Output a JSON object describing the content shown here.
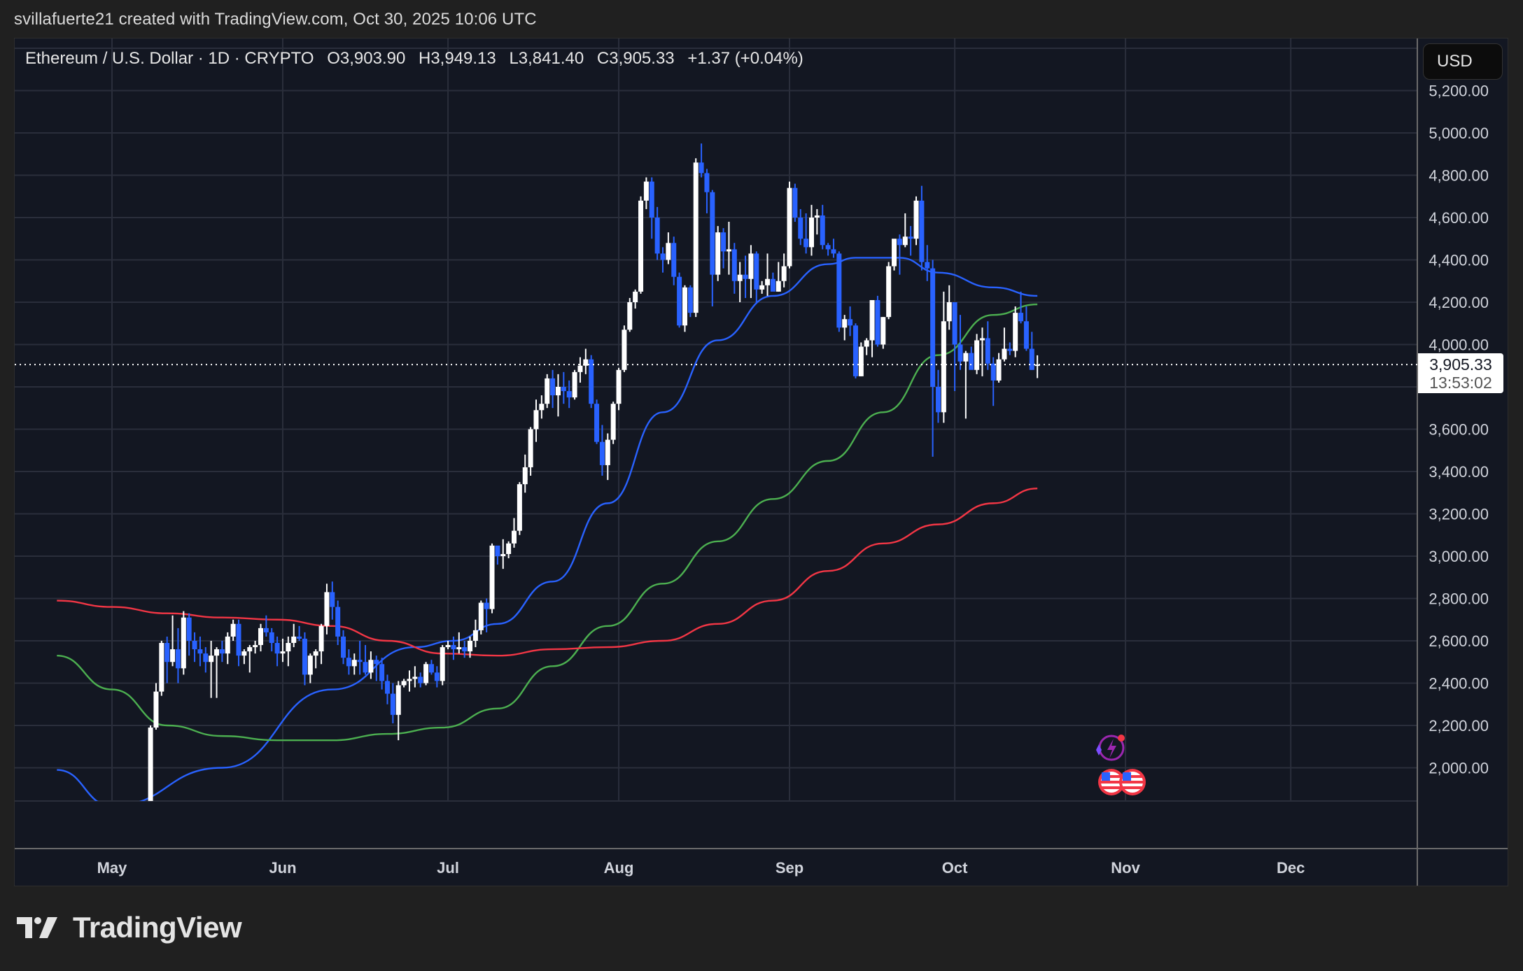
{
  "caption": "svillafuerte21 created with TradingView.com, Oct 30, 2025 10:06 UTC",
  "legend": {
    "symbol": "Ethereum / U.S. Dollar · 1D · CRYPTO",
    "open": "O3,903.90",
    "high": "H3,949.13",
    "low": "L3,841.40",
    "close": "C3,905.33",
    "change": "+1.37 (+0.04%)"
  },
  "currency_button": "USD",
  "last_price": {
    "value": "3,905.33",
    "countdown": "13:53:02"
  },
  "brand": "TradingView",
  "colors": {
    "background": "#131722",
    "outer": "#202020",
    "grid": "#2a2e3b",
    "up": "#ffffff",
    "down": "#2962ff",
    "ma_fast": "#2962ff",
    "ma_mid": "#4caf50",
    "ma_slow": "#f23645"
  },
  "chart_data": {
    "type": "candlestick",
    "title": "Ethereum / U.S. Dollar · 1D · CRYPTO",
    "xlabel": "",
    "ylabel": "USD",
    "y_ticks": [
      "2,000.00",
      "2,200.00",
      "2,400.00",
      "2,600.00",
      "2,800.00",
      "3,000.00",
      "3,200.00",
      "3,400.00",
      "3,600.00",
      "4,000.00",
      "4,200.00",
      "4,400.00",
      "4,600.00",
      "4,800.00",
      "5,000.00",
      "5,200.00"
    ],
    "x_ticks": [
      "May",
      "Jun",
      "Jul",
      "Aug",
      "Sep",
      "Oct",
      "Nov",
      "Dec"
    ],
    "ylim": [
      1850,
      5300
    ],
    "grid": true,
    "last_close": 3905.33,
    "ohlc_note": "day index d = days since May 1, 2025; values approximated from pixels",
    "candles": [
      [
        7,
        1800,
        2200,
        1790,
        2190
      ],
      [
        8,
        2190,
        2400,
        2180,
        2360
      ],
      [
        9,
        2360,
        2600,
        2340,
        2590
      ],
      [
        10,
        2590,
        2620,
        2400,
        2500
      ],
      [
        11,
        2500,
        2720,
        2480,
        2560
      ],
      [
        12,
        2560,
        2660,
        2400,
        2470
      ],
      [
        13,
        2470,
        2740,
        2440,
        2710
      ],
      [
        14,
        2710,
        2730,
        2530,
        2600
      ],
      [
        15,
        2600,
        2640,
        2500,
        2560
      ],
      [
        16,
        2560,
        2620,
        2480,
        2540
      ],
      [
        17,
        2540,
        2570,
        2450,
        2500
      ],
      [
        18,
        2500,
        2600,
        2330,
        2530
      ],
      [
        19,
        2530,
        2570,
        2330,
        2560
      ],
      [
        20,
        2560,
        2600,
        2500,
        2540
      ],
      [
        21,
        2540,
        2640,
        2490,
        2620
      ],
      [
        22,
        2620,
        2700,
        2600,
        2680
      ],
      [
        23,
        2680,
        2700,
        2480,
        2530
      ],
      [
        24,
        2530,
        2560,
        2490,
        2550
      ],
      [
        25,
        2550,
        2580,
        2450,
        2570
      ],
      [
        26,
        2570,
        2600,
        2540,
        2580
      ],
      [
        27,
        2580,
        2680,
        2550,
        2660
      ],
      [
        28,
        2660,
        2720,
        2620,
        2640
      ],
      [
        29,
        2640,
        2660,
        2550,
        2590
      ],
      [
        30,
        2590,
        2620,
        2480,
        2540
      ],
      [
        31,
        2540,
        2610,
        2500,
        2550
      ],
      [
        32,
        2550,
        2620,
        2480,
        2590
      ],
      [
        33,
        2590,
        2680,
        2570,
        2620
      ],
      [
        34,
        2620,
        2670,
        2600,
        2610
      ],
      [
        35,
        2610,
        2640,
        2390,
        2440
      ],
      [
        36,
        2440,
        2540,
        2400,
        2530
      ],
      [
        37,
        2530,
        2560,
        2470,
        2550
      ],
      [
        38,
        2550,
        2680,
        2490,
        2670
      ],
      [
        39,
        2670,
        2870,
        2630,
        2830
      ],
      [
        40,
        2830,
        2880,
        2700,
        2760
      ],
      [
        41,
        2760,
        2790,
        2580,
        2620
      ],
      [
        42,
        2620,
        2650,
        2490,
        2520
      ],
      [
        43,
        2520,
        2560,
        2440,
        2480
      ],
      [
        44,
        2480,
        2540,
        2440,
        2510
      ],
      [
        45,
        2510,
        2600,
        2440,
        2500
      ],
      [
        46,
        2500,
        2580,
        2440,
        2450
      ],
      [
        47,
        2450,
        2550,
        2420,
        2510
      ],
      [
        48,
        2510,
        2530,
        2410,
        2490
      ],
      [
        49,
        2490,
        2520,
        2370,
        2410
      ],
      [
        50,
        2410,
        2440,
        2300,
        2350
      ],
      [
        51,
        2350,
        2400,
        2210,
        2250
      ],
      [
        52,
        2250,
        2410,
        2130,
        2390
      ],
      [
        53,
        2390,
        2420,
        2380,
        2410
      ],
      [
        54,
        2410,
        2460,
        2360,
        2420
      ],
      [
        55,
        2420,
        2480,
        2380,
        2430
      ],
      [
        56,
        2430,
        2450,
        2380,
        2400
      ],
      [
        57,
        2400,
        2500,
        2390,
        2490
      ],
      [
        58,
        2490,
        2510,
        2440,
        2450
      ],
      [
        59,
        2450,
        2480,
        2380,
        2410
      ],
      [
        60,
        2410,
        2580,
        2390,
        2570
      ],
      [
        61,
        2570,
        2600,
        2560,
        2580
      ],
      [
        62,
        2580,
        2620,
        2510,
        2560
      ],
      [
        63,
        2560,
        2640,
        2540,
        2570
      ],
      [
        64,
        2570,
        2600,
        2520,
        2550
      ],
      [
        65,
        2550,
        2620,
        2520,
        2600
      ],
      [
        66,
        2600,
        2700,
        2570,
        2650
      ],
      [
        67,
        2650,
        2790,
        2630,
        2780
      ],
      [
        68,
        2780,
        2800,
        2640,
        2750
      ],
      [
        69,
        2750,
        3060,
        2730,
        3050
      ],
      [
        70,
        3050,
        3020,
        2960,
        3000
      ],
      [
        71,
        3000,
        3080,
        2940,
        3010
      ],
      [
        72,
        3010,
        3070,
        2990,
        3060
      ],
      [
        73,
        3060,
        3180,
        3040,
        3120
      ],
      [
        74,
        3120,
        3350,
        3100,
        3340
      ],
      [
        75,
        3340,
        3480,
        3300,
        3420
      ],
      [
        76,
        3420,
        3610,
        3380,
        3600
      ],
      [
        77,
        3600,
        3740,
        3540,
        3690
      ],
      [
        78,
        3690,
        3760,
        3650,
        3720
      ],
      [
        79,
        3720,
        3860,
        3700,
        3840
      ],
      [
        80,
        3840,
        3880,
        3700,
        3760
      ],
      [
        81,
        3760,
        3860,
        3660,
        3800
      ],
      [
        82,
        3800,
        3870,
        3720,
        3780
      ],
      [
        83,
        3780,
        3830,
        3700,
        3750
      ],
      [
        84,
        3750,
        3880,
        3740,
        3870
      ],
      [
        85,
        3870,
        3940,
        3820,
        3900
      ],
      [
        86,
        3900,
        3980,
        3860,
        3930
      ],
      [
        87,
        3930,
        3950,
        3700,
        3720
      ],
      [
        88,
        3720,
        3740,
        3530,
        3540
      ],
      [
        89,
        3540,
        3620,
        3380,
        3430
      ],
      [
        90,
        3430,
        3580,
        3360,
        3550
      ],
      [
        91,
        3550,
        3730,
        3530,
        3720
      ],
      [
        92,
        3720,
        3890,
        3690,
        3880
      ],
      [
        93,
        3880,
        4090,
        3870,
        4070
      ],
      [
        94,
        4070,
        4220,
        4060,
        4200
      ],
      [
        95,
        4200,
        4260,
        4170,
        4250
      ],
      [
        96,
        4250,
        4700,
        4240,
        4680
      ],
      [
        97,
        4680,
        4790,
        4640,
        4770
      ],
      [
        98,
        4770,
        4790,
        4500,
        4600
      ],
      [
        99,
        4600,
        4650,
        4400,
        4430
      ],
      [
        100,
        4430,
        4460,
        4340,
        4400
      ],
      [
        101,
        4400,
        4530,
        4380,
        4480
      ],
      [
        102,
        4480,
        4510,
        4280,
        4320
      ],
      [
        103,
        4320,
        4340,
        4080,
        4090
      ],
      [
        104,
        4090,
        4280,
        4060,
        4270
      ],
      [
        105,
        4270,
        4280,
        4130,
        4150
      ],
      [
        106,
        4150,
        4880,
        4130,
        4860
      ],
      [
        107,
        4860,
        4950,
        4790,
        4810
      ],
      [
        108,
        4810,
        4830,
        4620,
        4720
      ],
      [
        109,
        4720,
        4730,
        4180,
        4330
      ],
      [
        110,
        4330,
        4560,
        4300,
        4530
      ],
      [
        111,
        4530,
        4550,
        4360,
        4440
      ],
      [
        112,
        4440,
        4580,
        4330,
        4450
      ],
      [
        113,
        4450,
        4480,
        4240,
        4300
      ],
      [
        114,
        4300,
        4390,
        4200,
        4330
      ],
      [
        115,
        4330,
        4420,
        4220,
        4310
      ],
      [
        116,
        4310,
        4470,
        4220,
        4430
      ],
      [
        117,
        4430,
        4440,
        4200,
        4260
      ],
      [
        118,
        4260,
        4300,
        4240,
        4280
      ],
      [
        119,
        4280,
        4430,
        4230,
        4310
      ],
      [
        120,
        4310,
        4340,
        4260,
        4250
      ],
      [
        121,
        4250,
        4390,
        4250,
        4300
      ],
      [
        122,
        4300,
        4430,
        4270,
        4370
      ],
      [
        123,
        4370,
        4770,
        4360,
        4740
      ],
      [
        124,
        4740,
        4760,
        4580,
        4600
      ],
      [
        125,
        4600,
        4640,
        4470,
        4500
      ],
      [
        126,
        4500,
        4620,
        4430,
        4460
      ],
      [
        127,
        4460,
        4660,
        4420,
        4600
      ],
      [
        128,
        4600,
        4640,
        4520,
        4610
      ],
      [
        129,
        4610,
        4660,
        4450,
        4470
      ],
      [
        130,
        4470,
        4480,
        4420,
        4450
      ],
      [
        131,
        4450,
        4500,
        4410,
        4430
      ],
      [
        132,
        4430,
        4440,
        4060,
        4080
      ],
      [
        133,
        4080,
        4140,
        4020,
        4120
      ],
      [
        134,
        4120,
        4180,
        4040,
        4090
      ],
      [
        135,
        4090,
        4100,
        3840,
        3850
      ],
      [
        136,
        3850,
        4010,
        3850,
        3990
      ],
      [
        137,
        3990,
        4030,
        3950,
        4020
      ],
      [
        138,
        4020,
        4200,
        3940,
        4210
      ],
      [
        139,
        4210,
        4230,
        3990,
        4000
      ],
      [
        140,
        4000,
        4130,
        3980,
        4130
      ],
      [
        141,
        4130,
        4390,
        4120,
        4370
      ],
      [
        142,
        4370,
        4490,
        4350,
        4500
      ],
      [
        143,
        4500,
        4520,
        4330,
        4470
      ],
      [
        144,
        4470,
        4620,
        4460,
        4510
      ],
      [
        145,
        4510,
        4560,
        4420,
        4500
      ],
      [
        146,
        4500,
        4700,
        4470,
        4680
      ],
      [
        147,
        4680,
        4750,
        4350,
        4390
      ],
      [
        148,
        4390,
        4470,
        4300,
        4360
      ],
      [
        149,
        4360,
        4400,
        3470,
        3800
      ],
      [
        150,
        3800,
        3880,
        3630,
        3680
      ],
      [
        151,
        3680,
        4250,
        3630,
        4110
      ],
      [
        152,
        4110,
        4280,
        4070,
        4200
      ],
      [
        153,
        4200,
        4190,
        3780,
        4000
      ],
      [
        154,
        4000,
        4140,
        3880,
        3920
      ],
      [
        155,
        3920,
        3970,
        3650,
        3960
      ],
      [
        156,
        3960,
        3990,
        3900,
        3880
      ],
      [
        157,
        3880,
        4050,
        3860,
        4020
      ],
      [
        158,
        4020,
        4080,
        3850,
        4030
      ],
      [
        159,
        4030,
        4110,
        3880,
        3910
      ],
      [
        160,
        3910,
        3940,
        3710,
        3830
      ],
      [
        161,
        3830,
        3960,
        3820,
        3930
      ],
      [
        162,
        3930,
        4080,
        3920,
        3980
      ],
      [
        163,
        3980,
        4010,
        3950,
        3970
      ],
      [
        164,
        3970,
        4180,
        3940,
        4150
      ],
      [
        165,
        4150,
        4250,
        4100,
        4110
      ],
      [
        166,
        4110,
        4180,
        3970,
        3980
      ],
      [
        167,
        3980,
        4060,
        3880,
        3880
      ],
      [
        168,
        3903.9,
        3949.13,
        3841.4,
        3905.33
      ]
    ],
    "series": [
      {
        "name": "MA fast (blue)",
        "x_days": [
          -10,
          0,
          20,
          40,
          55,
          62,
          70,
          80,
          90,
          100,
          110,
          120,
          130,
          135,
          143,
          150,
          160,
          168
        ],
        "values": [
          1990,
          1820,
          2000,
          2370,
          2570,
          2600,
          2680,
          2880,
          3250,
          3680,
          4020,
          4230,
          4380,
          4410,
          4410,
          4340,
          4270,
          4230
        ]
      },
      {
        "name": "MA mid (green)",
        "x_days": [
          -10,
          0,
          10,
          20,
          30,
          40,
          50,
          60,
          70,
          80,
          90,
          100,
          110,
          120,
          130,
          140,
          150,
          160,
          168
        ],
        "values": [
          2530,
          2370,
          2200,
          2150,
          2130,
          2130,
          2160,
          2190,
          2280,
          2480,
          2670,
          2870,
          3070,
          3270,
          3450,
          3680,
          3950,
          4140,
          4190
        ]
      },
      {
        "name": "MA slow (red)",
        "x_days": [
          -10,
          0,
          10,
          20,
          30,
          40,
          50,
          60,
          70,
          80,
          90,
          100,
          110,
          120,
          130,
          140,
          150,
          160,
          168
        ],
        "values": [
          2790,
          2760,
          2730,
          2710,
          2700,
          2670,
          2600,
          2540,
          2530,
          2560,
          2570,
          2600,
          2680,
          2790,
          2930,
          3060,
          3150,
          3250,
          3320
        ]
      }
    ]
  }
}
